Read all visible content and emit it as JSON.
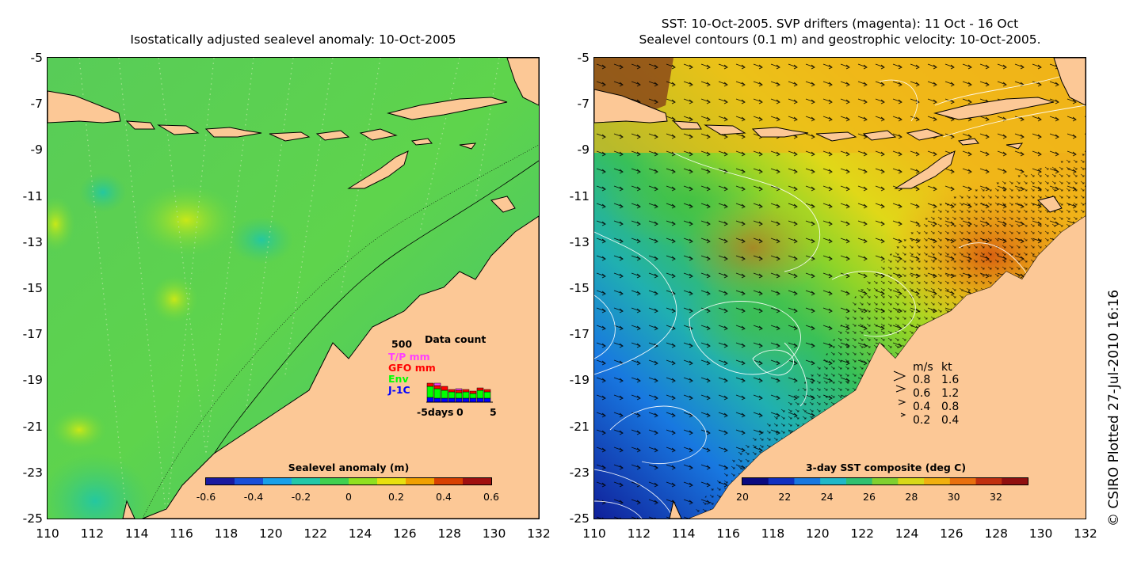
{
  "left_panel": {
    "title": "Isostatically adjusted sealevel anomaly: 10-Oct-2005",
    "colorbar": {
      "title": "Sealevel anomaly (m)",
      "ticks": [
        "-0.6",
        "-0.4",
        "-0.2",
        "0",
        "0.2",
        "0.4",
        "0.6"
      ],
      "colors": [
        "#1a1aa0",
        "#1a4fd8",
        "#1aa0e8",
        "#22c8a8",
        "#40d050",
        "#90e020",
        "#e8e010",
        "#f0a000",
        "#d84000",
        "#a01010"
      ]
    },
    "data_count": {
      "title": "Data count",
      "scale_label": "500",
      "series": [
        {
          "name": "T/P mm",
          "color": "#ff40ff"
        },
        {
          "name": "GFO mm",
          "color": "#ff0000"
        },
        {
          "name": "Env",
          "color": "#00ff00"
        },
        {
          "name": "J-1C",
          "color": "#0000ff"
        }
      ],
      "x_label": "-5days",
      "x_ticks": [
        "0",
        "5"
      ]
    }
  },
  "right_panel": {
    "title_line1": "SST: 10-Oct-2005. SVP drifters (magenta): 11 Oct - 16 Oct",
    "title_line2": "Sealevel contours (0.1 m) and geostrophic velocity: 10-Oct-2005.",
    "colorbar": {
      "title": "3-day SST composite (deg C)",
      "ticks": [
        "20",
        "22",
        "24",
        "26",
        "28",
        "30",
        "32"
      ],
      "colors": [
        "#0a0a80",
        "#1030c0",
        "#1878e0",
        "#20b8c8",
        "#30c070",
        "#80d030",
        "#d8d818",
        "#f0b010",
        "#e87010",
        "#c03010",
        "#901010"
      ]
    },
    "velocity_legend": {
      "header_ms": "m/s",
      "header_kt": "kt",
      "rows": [
        {
          "ms": "0.8",
          "kt": "1.6"
        },
        {
          "ms": "0.6",
          "kt": "1.2"
        },
        {
          "ms": "0.4",
          "kt": "0.8"
        },
        {
          "ms": "0.2",
          "kt": "0.4"
        }
      ]
    }
  },
  "axes": {
    "y_ticks": [
      "-5",
      "-7",
      "-9",
      "-11",
      "-13",
      "-15",
      "-17",
      "-19",
      "-21",
      "-23",
      "-25"
    ],
    "x_ticks": [
      "110",
      "112",
      "114",
      "116",
      "118",
      "120",
      "122",
      "124",
      "126",
      "128",
      "130",
      "132"
    ],
    "lon_range": [
      110,
      132
    ],
    "lat_range": [
      -25,
      -5
    ]
  },
  "credit": "© CSIRO Plotted 27-Jul-2010 16:16",
  "colors": {
    "land": "#fcc896",
    "coast": "#000000"
  }
}
